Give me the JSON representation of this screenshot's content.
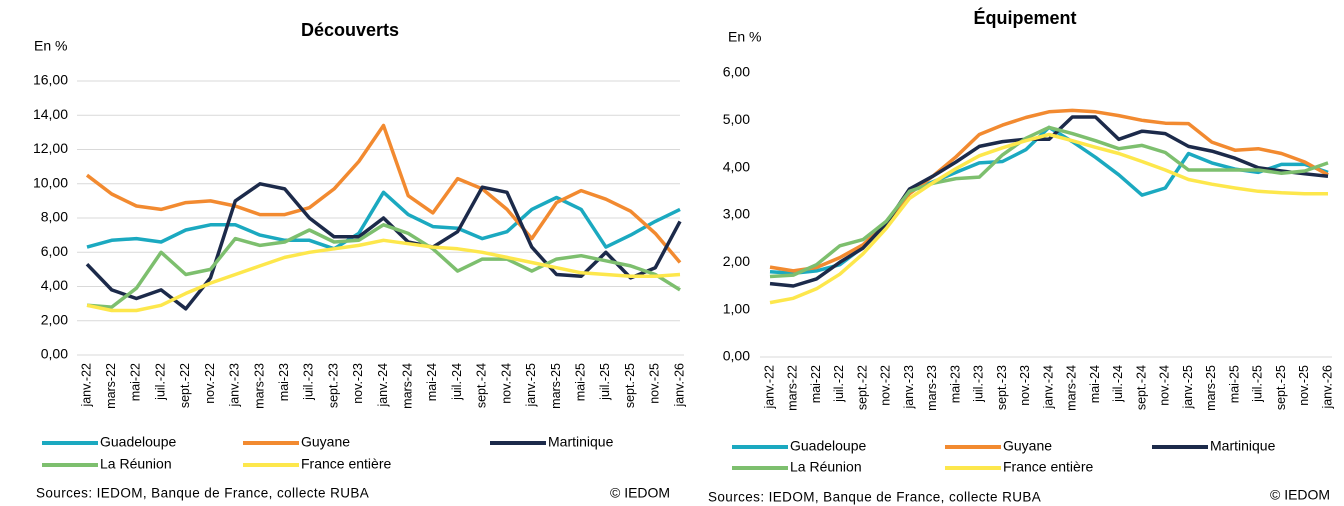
{
  "chart_data": [
    {
      "type": "line",
      "title": "Découverts",
      "y_label": "En %",
      "source": "Sources: IEDOM, Banque de France, collecte RUBA",
      "copyright": "© IEDOM",
      "categories": [
        "janv.-22",
        "mars-22",
        "mai-22",
        "juil.-22",
        "sept.-22",
        "nov.-22",
        "janv.-23",
        "mars-23",
        "mai-23",
        "juil.-23",
        "sept.-23",
        "nov.-23",
        "janv.-24",
        "mars-24",
        "mai-24",
        "juil.-24",
        "sept.-24",
        "nov.-24",
        "janv.-25",
        "mars-25",
        "mai-25",
        "juil.-25",
        "sept.-25",
        "nov.-25",
        "janv.-26"
      ],
      "ylim": [
        0,
        16
      ],
      "yticks": [
        {
          "value": 0,
          "label": "0,00"
        },
        {
          "value": 2,
          "label": "2,00"
        },
        {
          "value": 4,
          "label": "4,00"
        },
        {
          "value": 6,
          "label": "6,00"
        },
        {
          "value": 8,
          "label": "8,00"
        },
        {
          "value": 10,
          "label": "10,00"
        },
        {
          "value": 12,
          "label": "12,00"
        },
        {
          "value": 14,
          "label": "14,00"
        },
        {
          "value": 16,
          "label": "16,00"
        }
      ],
      "grid": true,
      "series": [
        {
          "name": "Guadeloupe",
          "color": "#1ba9c0",
          "values": [
            6.3,
            6.7,
            6.8,
            6.6,
            7.3,
            7.6,
            7.6,
            7.0,
            6.7,
            6.7,
            6.2,
            7.1,
            9.5,
            8.2,
            7.5,
            7.4,
            6.8,
            7.2,
            8.5,
            9.2,
            8.5,
            6.3,
            7.0,
            7.8,
            8.5
          ]
        },
        {
          "name": "Guyane",
          "color": "#f28a30",
          "values": [
            10.5,
            9.4,
            8.7,
            8.5,
            8.9,
            9.0,
            8.7,
            8.2,
            8.2,
            8.6,
            9.7,
            11.3,
            13.4,
            9.3,
            8.3,
            10.3,
            9.7,
            8.5,
            6.8,
            8.9,
            9.6,
            9.1,
            8.4,
            7.1,
            5.4
          ]
        },
        {
          "name": "Martinique",
          "color": "#1c2a4a",
          "values": [
            5.3,
            3.8,
            3.3,
            3.8,
            2.7,
            4.5,
            9.0,
            10.0,
            9.7,
            8.0,
            6.9,
            6.9,
            8.0,
            6.6,
            6.3,
            7.2,
            9.8,
            9.5,
            6.3,
            4.7,
            4.6,
            6.0,
            4.5,
            5.1,
            7.8
          ]
        },
        {
          "name": "La Réunion",
          "color": "#7dbf6e",
          "values": [
            2.9,
            2.8,
            3.9,
            6.0,
            4.7,
            5.0,
            6.8,
            6.4,
            6.6,
            7.3,
            6.6,
            6.7,
            7.6,
            7.1,
            6.2,
            4.9,
            5.6,
            5.6,
            4.9,
            5.6,
            5.8,
            5.5,
            5.2,
            4.7,
            3.8
          ]
        },
        {
          "name": "France entière",
          "color": "#fde74c",
          "values": [
            2.9,
            2.6,
            2.6,
            2.9,
            3.6,
            4.2,
            4.7,
            5.2,
            5.7,
            6.0,
            6.2,
            6.4,
            6.7,
            6.5,
            6.3,
            6.2,
            6.0,
            5.7,
            5.4,
            5.1,
            4.8,
            4.7,
            4.6,
            4.6,
            4.7
          ]
        }
      ]
    },
    {
      "type": "line",
      "title": "Équipement",
      "y_label": "En %",
      "source": "Sources: IEDOM, Banque de France, collecte RUBA",
      "copyright": "© IEDOM",
      "categories": [
        "janv.-22",
        "mars-22",
        "mai-22",
        "juil.-22",
        "sept.-22",
        "nov.-22",
        "janv.-23",
        "mars-23",
        "mai-23",
        "juil.-23",
        "sept.-23",
        "nov.-23",
        "janv.-24",
        "mars-24",
        "mai-24",
        "juil.-24",
        "sept.-24",
        "nov.-24",
        "janv.-25",
        "mars-25",
        "mai-25",
        "juil.-25",
        "sept.-25",
        "nov.-25",
        "janv.-26"
      ],
      "ylim": [
        0,
        6
      ],
      "yticks": [
        {
          "value": 0,
          "label": "0,00"
        },
        {
          "value": 1,
          "label": "1,00"
        },
        {
          "value": 2,
          "label": "2,00"
        },
        {
          "value": 3,
          "label": "3,00"
        },
        {
          "value": 4,
          "label": "4,00"
        },
        {
          "value": 5,
          "label": "5,00"
        },
        {
          "value": 6,
          "label": "6,00"
        }
      ],
      "grid": false,
      "series": [
        {
          "name": "Guadeloupe",
          "color": "#1ba9c0",
          "values": [
            1.8,
            1.77,
            1.82,
            1.95,
            2.32,
            2.83,
            3.5,
            3.7,
            3.9,
            4.1,
            4.13,
            4.38,
            4.85,
            4.55,
            4.22,
            3.85,
            3.42,
            3.57,
            4.3,
            4.1,
            3.97,
            3.9,
            4.07,
            4.07,
            3.9
          ]
        },
        {
          "name": "Guyane",
          "color": "#f28a30",
          "values": [
            1.9,
            1.82,
            1.89,
            2.1,
            2.37,
            2.82,
            3.45,
            3.82,
            4.23,
            4.7,
            4.9,
            5.06,
            5.18,
            5.21,
            5.18,
            5.1,
            5.0,
            4.94,
            4.93,
            4.54,
            4.37,
            4.4,
            4.3,
            4.12,
            3.85
          ]
        },
        {
          "name": "Martinique",
          "color": "#1c2a4a",
          "values": [
            1.55,
            1.5,
            1.65,
            2.0,
            2.3,
            2.82,
            3.55,
            3.82,
            4.12,
            4.45,
            4.55,
            4.6,
            4.6,
            5.07,
            5.07,
            4.6,
            4.77,
            4.72,
            4.45,
            4.35,
            4.2,
            4.0,
            3.93,
            3.87,
            3.82
          ]
        },
        {
          "name": "La Réunion",
          "color": "#7dbf6e",
          "values": [
            1.7,
            1.73,
            1.95,
            2.35,
            2.48,
            2.87,
            3.5,
            3.67,
            3.77,
            3.8,
            4.27,
            4.62,
            4.85,
            4.72,
            4.57,
            4.4,
            4.47,
            4.32,
            3.95,
            3.95,
            3.95,
            3.95,
            3.88,
            3.93,
            4.1
          ]
        },
        {
          "name": "France entière",
          "color": "#fde74c",
          "values": [
            1.15,
            1.24,
            1.44,
            1.75,
            2.18,
            2.72,
            3.35,
            3.68,
            3.98,
            4.25,
            4.42,
            4.57,
            4.7,
            4.57,
            4.43,
            4.3,
            4.13,
            3.95,
            3.75,
            3.65,
            3.57,
            3.5,
            3.47,
            3.45,
            3.45
          ]
        }
      ]
    }
  ]
}
